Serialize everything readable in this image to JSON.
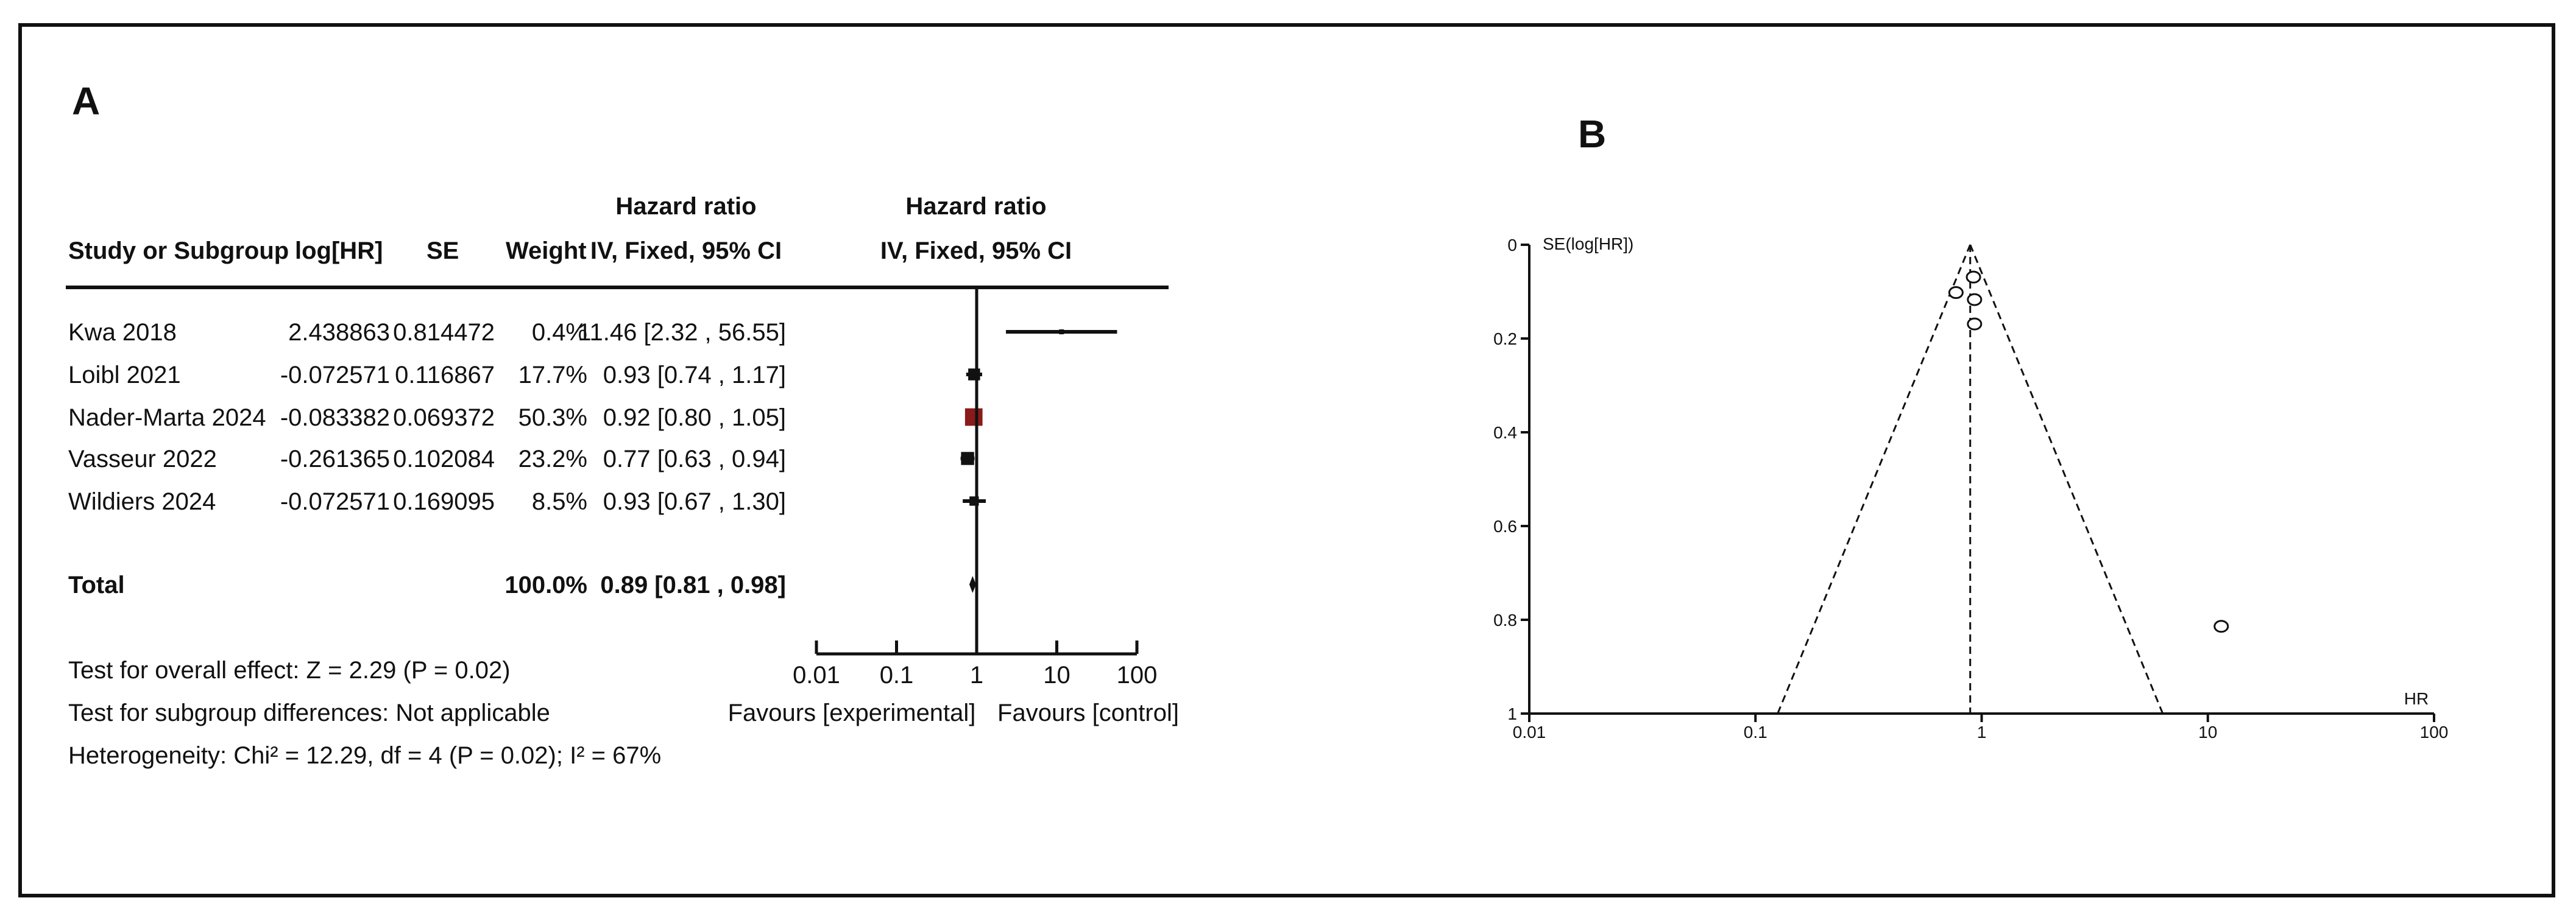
{
  "chart_data": [
    {
      "type": "table",
      "panel_label": "A",
      "columns": {
        "study": "Study or Subgroup",
        "loghr": "log[HR]",
        "se": "SE",
        "weight": "Weight",
        "ci_top": "Hazard ratio",
        "ci_bottom": "IV, Fixed, 95% CI",
        "plot_top": "Hazard ratio",
        "plot_bottom": "IV, Fixed, 95% CI"
      },
      "studies": [
        {
          "name": "Kwa 2018",
          "loghr": "2.438863",
          "se": "0.814472",
          "weight": "0.4%",
          "ci": "11.46 [2.32 , 56.55]",
          "hr": 11.46,
          "lower": 2.32,
          "upper": 56.55,
          "weight_pct": 0.4
        },
        {
          "name": "Loibl 2021",
          "loghr": "-0.072571",
          "se": "0.116867",
          "weight": "17.7%",
          "ci": "0.93 [0.74 , 1.17]",
          "hr": 0.93,
          "lower": 0.74,
          "upper": 1.17,
          "weight_pct": 17.7
        },
        {
          "name": "Nader-Marta 2024",
          "loghr": "-0.083382",
          "se": "0.069372",
          "weight": "50.3%",
          "ci": "0.92 [0.80 , 1.05]",
          "hr": 0.92,
          "lower": 0.8,
          "upper": 1.05,
          "weight_pct": 50.3
        },
        {
          "name": "Vasseur 2022",
          "loghr": "-0.261365",
          "se": "0.102084",
          "weight": "23.2%",
          "ci": "0.77 [0.63 , 0.94]",
          "hr": 0.77,
          "lower": 0.63,
          "upper": 0.94,
          "weight_pct": 23.2
        },
        {
          "name": "Wildiers 2024",
          "loghr": "-0.072571",
          "se": "0.169095",
          "weight": "8.5%",
          "ci": "0.93 [0.67 , 1.30]",
          "hr": 0.93,
          "lower": 0.67,
          "upper": 1.3,
          "weight_pct": 8.5
        }
      ],
      "total": {
        "label": "Total",
        "weight": "100.0%",
        "ci": "0.89 [0.81 , 0.98]",
        "hr": 0.89,
        "lower": 0.81,
        "upper": 0.98
      },
      "footer": [
        "Test for overall effect: Z = 2.29 (P = 0.02)",
        "Test for subgroup differences: Not applicable",
        "Heterogeneity: Chi² = 12.29, df = 4 (P = 0.02); I² = 67%"
      ],
      "xaxis": {
        "scale": "log",
        "ticks": [
          0.01,
          0.1,
          1,
          10,
          100
        ],
        "tick_labels": [
          "0.01",
          "0.1",
          "1",
          "10",
          "100"
        ],
        "xlim": [
          0.01,
          100
        ]
      },
      "favours_left": "Favours [experimental]",
      "favours_right": "Favours [control]",
      "colors": {
        "study_marker": "#111111",
        "pooled_marker": "#8b1a1a",
        "line": "#111111"
      }
    },
    {
      "type": "scatter",
      "panel_label": "B",
      "ylabel": "SE(log[HR])",
      "xlabel": "HR",
      "xaxis": {
        "scale": "log",
        "ticks": [
          0.01,
          0.1,
          1,
          10,
          100
        ],
        "tick_labels": [
          "0.01",
          "0.1",
          "1",
          "10",
          "100"
        ],
        "xlim": [
          0.01,
          100
        ]
      },
      "yaxis": {
        "reversed": true,
        "ticks": [
          0,
          0.2,
          0.4,
          0.6,
          0.8,
          1
        ],
        "tick_labels": [
          "0",
          "0.2",
          "0.4",
          "0.6",
          "0.8",
          "1"
        ],
        "ylim": [
          0,
          1
        ]
      },
      "pooled_hr": 0.89,
      "funnel": true,
      "points": [
        {
          "hr": 11.46,
          "se": 0.814
        },
        {
          "hr": 0.93,
          "se": 0.117
        },
        {
          "hr": 0.92,
          "se": 0.069
        },
        {
          "hr": 0.77,
          "se": 0.102
        },
        {
          "hr": 0.93,
          "se": 0.169
        }
      ]
    }
  ]
}
